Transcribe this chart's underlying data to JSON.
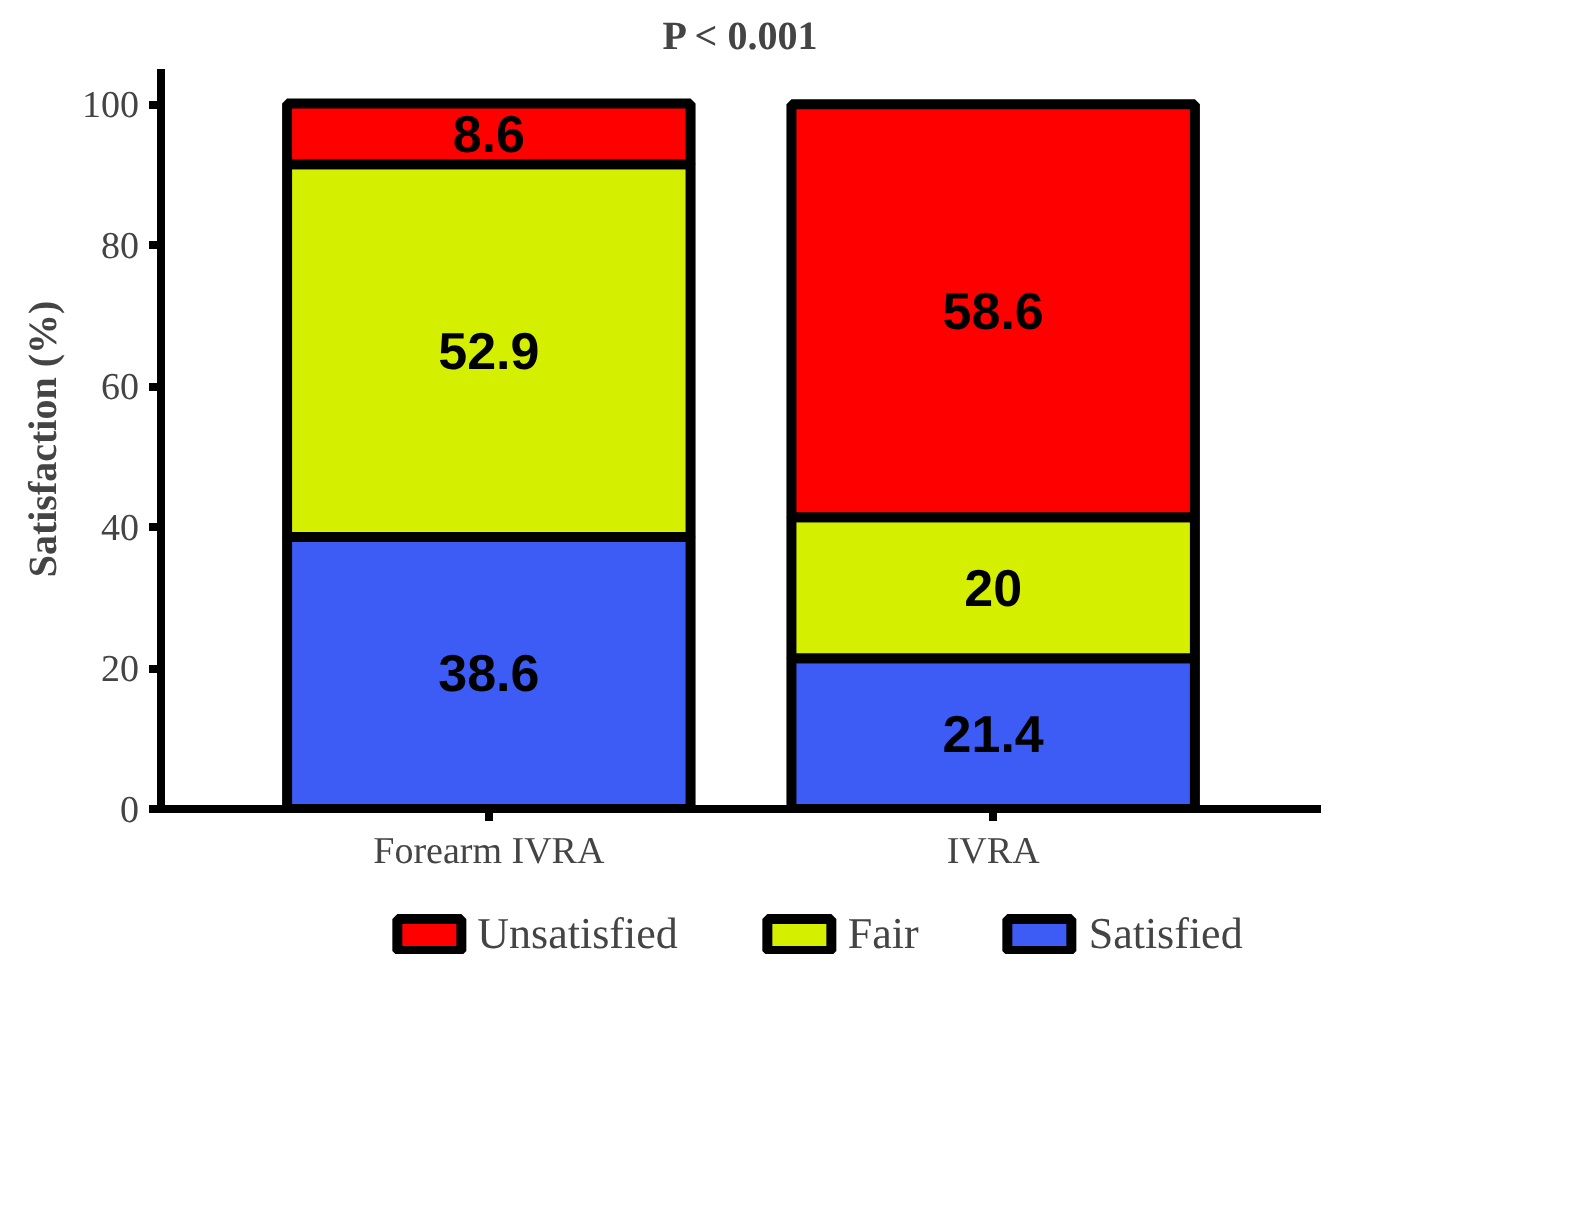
{
  "chart_data": {
    "type": "bar",
    "title": "P < 0.001",
    "ylabel": "Satisfaction (%)",
    "categories": [
      "Forearm IVRA",
      "IVRA"
    ],
    "series": [
      {
        "name": "Satisfied",
        "color": "#3d5cf5",
        "values": [
          38.6,
          21.4
        ]
      },
      {
        "name": "Fair",
        "color": "#d4f000",
        "values": [
          52.9,
          20
        ]
      },
      {
        "name": "Unsatisfied",
        "color": "#ff0000",
        "values": [
          8.6,
          58.6
        ]
      }
    ],
    "stacked": true,
    "data_labels": true,
    "ylim": [
      0,
      105
    ],
    "yticks": [
      0,
      20,
      40,
      60,
      80,
      100
    ],
    "grid": false,
    "legend": "bottom"
  }
}
